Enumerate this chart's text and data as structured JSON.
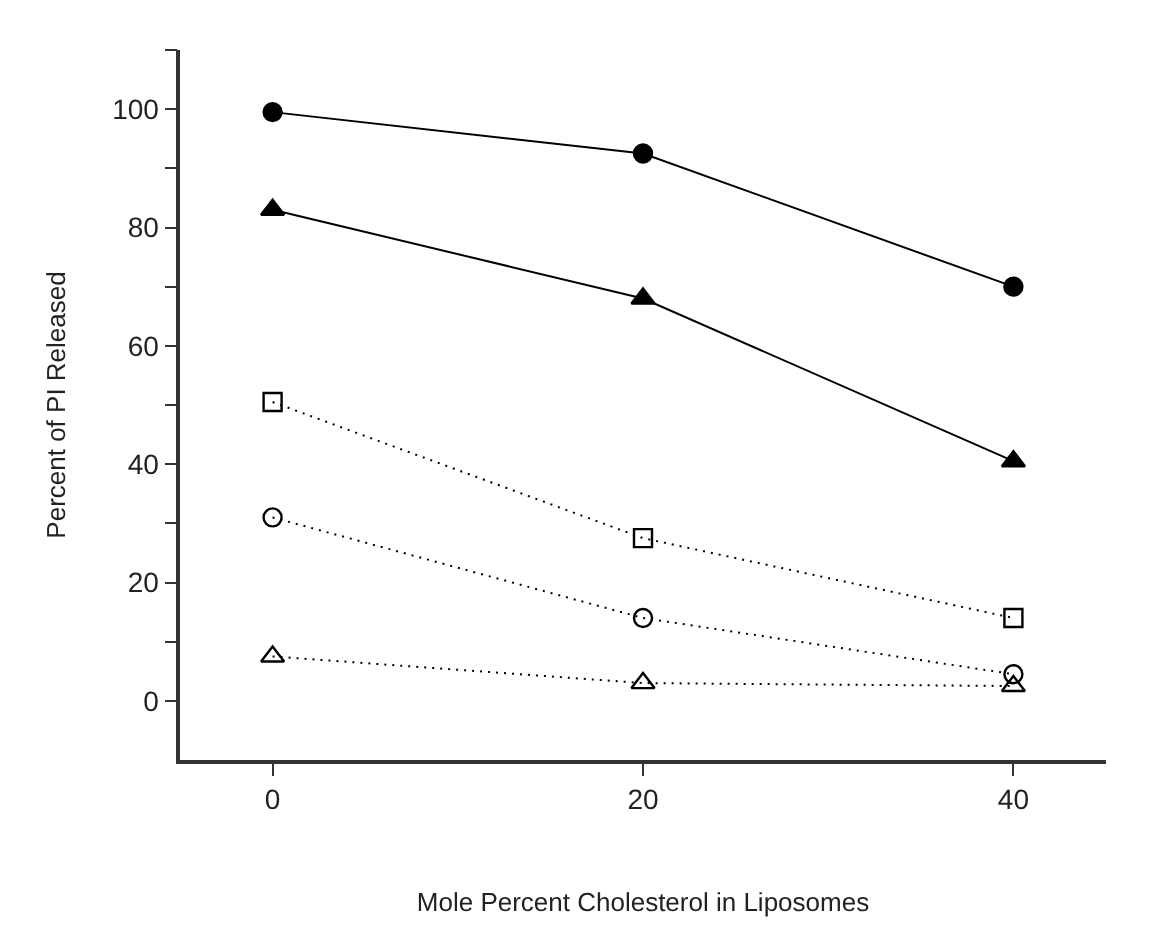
{
  "chart_data": {
    "type": "line",
    "xlabel": "Mole Percent Cholesterol in Liposomes",
    "ylabel": "Percent of PI Released",
    "x": [
      0,
      20,
      40
    ],
    "series": [
      {
        "color": "#000000",
        "marker": "circle",
        "line_style": "solid",
        "values": [
          99.5,
          92.5,
          70
        ]
      },
      {
        "color": "#000000",
        "marker": "triangle",
        "line_style": "solid",
        "values": [
          83,
          68,
          40.5
        ]
      },
      {
        "color": "#000000",
        "marker": "square",
        "line_style": "dotted",
        "values": [
          50.5,
          27.5,
          14
        ]
      },
      {
        "color": "#000000",
        "marker": "circle",
        "line_style": "dotted",
        "values": [
          31,
          14,
          4.5
        ]
      },
      {
        "color": "#000000",
        "marker": "triangle",
        "line_style": "dotted",
        "values": [
          7.5,
          3,
          2.5
        ]
      }
    ],
    "xlim": [
      -5,
      45
    ],
    "xticks": [
      0,
      20,
      40
    ],
    "ylim": [
      -10,
      110
    ],
    "yticks": [
      0,
      {
        "value": 10,
        "label": null
      },
      20,
      {
        "value": 30,
        "label": null
      },
      40,
      {
        "value": 50,
        "label": null
      },
      60,
      {
        "value": 70,
        "label": null
      },
      80,
      {
        "value": 90,
        "label": null
      },
      100,
      {
        "value": 110,
        "label": null
      }
    ]
  }
}
